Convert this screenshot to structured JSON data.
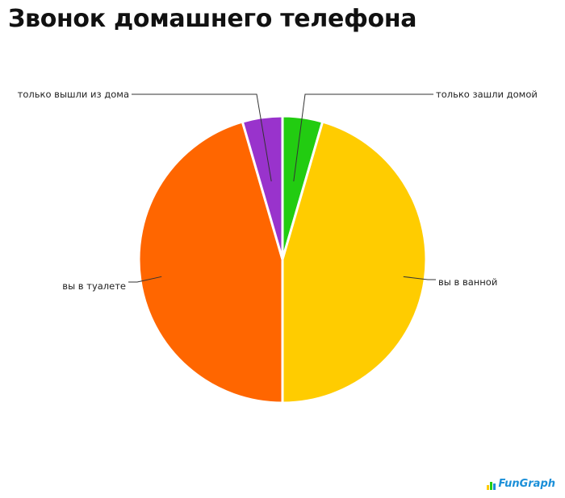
{
  "chart_data": {
    "type": "pie",
    "title": "Звонок домашнего телефона",
    "slices": [
      {
        "label": "только зашли домой",
        "value": 4.5,
        "color": "#22cc11"
      },
      {
        "label": "вы в ванной",
        "value": 45.5,
        "color": "#ffcc00"
      },
      {
        "label": "вы в туалете",
        "value": 45.5,
        "color": "#ff6600"
      },
      {
        "label": "только вышли из дома",
        "value": 4.5,
        "color": "#9933cc"
      }
    ],
    "start_angle_deg": 0,
    "direction": "clockwise"
  },
  "branding": {
    "logo_text": "FunGraph",
    "logo_bar_colors": [
      "#ffcc00",
      "#22cc11",
      "#1a8fd8"
    ]
  }
}
